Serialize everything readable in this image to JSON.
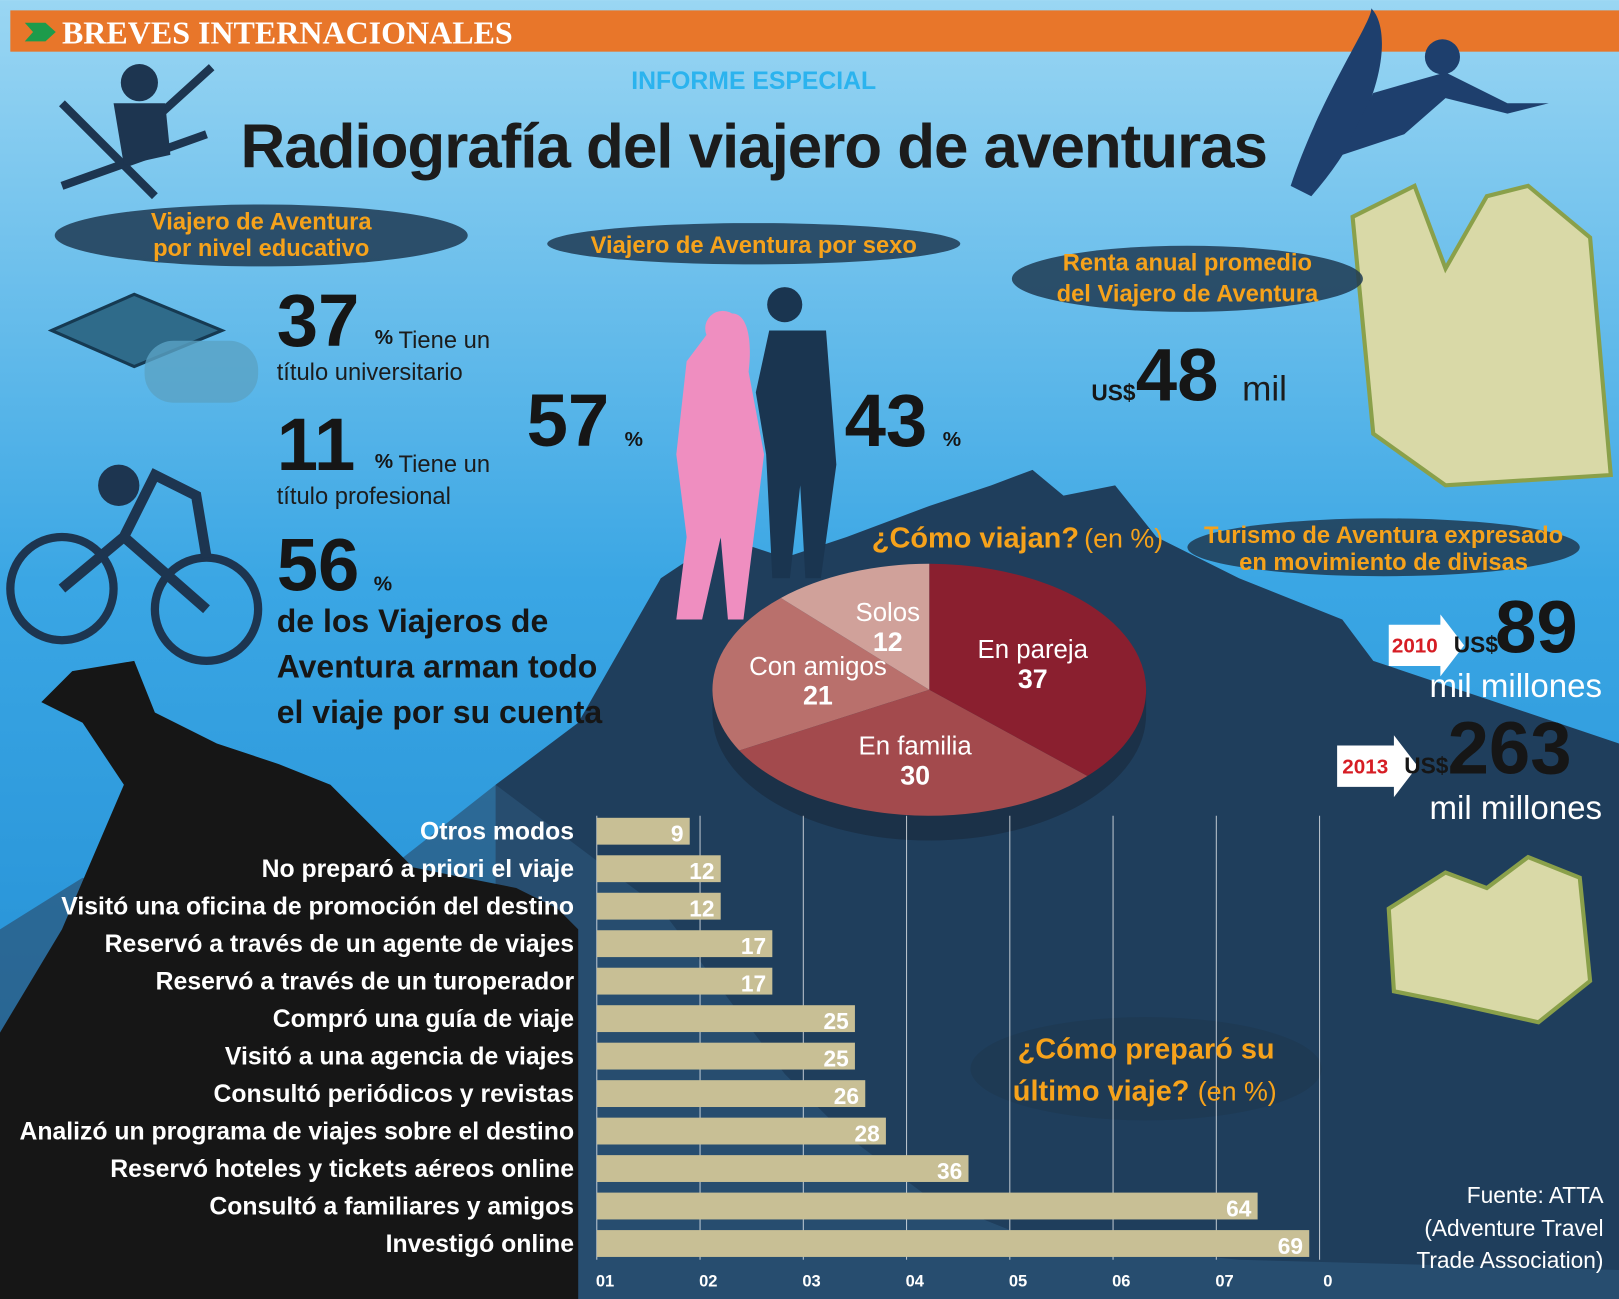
{
  "header": {
    "section": "BREVES INTERNACIONALES",
    "kicker": "INFORME ESPECIAL",
    "title": "Radiografía del viajero de aventuras"
  },
  "education": {
    "heading": [
      "Viajero de Aventura",
      "por nivel educativo"
    ],
    "items": [
      {
        "value": 37,
        "unit": "%",
        "text": [
          "Tiene un",
          "título universitario"
        ]
      },
      {
        "value": 11,
        "unit": "%",
        "text": [
          "Tiene un",
          "título profesional"
        ]
      },
      {
        "value": 56,
        "unit": "%",
        "text": [
          "de los Viajeros de",
          "Aventura arman todo",
          "el viaje por su cuenta"
        ]
      }
    ]
  },
  "sex": {
    "heading": "Viajero de Aventura por sexo",
    "women": {
      "value": 57,
      "unit": "%"
    },
    "men": {
      "value": 43,
      "unit": "%"
    }
  },
  "income": {
    "heading": [
      "Renta anual promedio",
      "del Viajero de Aventura"
    ],
    "currency": "US$",
    "value": 48,
    "unit": "mil"
  },
  "currency": {
    "heading": [
      "Turismo de Aventura expresado",
      "en movimiento de divisas"
    ],
    "items": [
      {
        "year": "2010",
        "currency": "US$",
        "value": 89,
        "unit": "mil millones"
      },
      {
        "year": "2013",
        "currency": "US$",
        "value": 263,
        "unit": "mil millones"
      }
    ]
  },
  "chart_data": [
    {
      "type": "pie",
      "title": "¿Cómo viajan?",
      "title_unit": "(en %)",
      "categories": [
        "En pareja",
        "En familia",
        "Con amigos",
        "Solos"
      ],
      "values": [
        37,
        30,
        21,
        12
      ],
      "colors": [
        "#8a1f2f",
        "#a34a4d",
        "#b9706c",
        "#d0a19a"
      ]
    },
    {
      "type": "bar",
      "orientation": "horizontal",
      "title": [
        "¿Cómo preparó su",
        "último viaje?"
      ],
      "title_unit": "(en %)",
      "categories": [
        "Otros modos",
        "No preparó a priori el viaje",
        "Visitó una oficina de promoción del destino",
        "Reservó a través de un agente de viajes",
        "Reservó a través de un turoperador",
        "Compró una guía de viaje",
        "Visitó a una agencia de viajes",
        "Consultó periódicos y revistas",
        "Analizó un programa de viajes sobre el destino",
        "Reservó hoteles y tickets aéreos online",
        "Consultó a familiares y amigos",
        "Investigó online"
      ],
      "values": [
        9,
        12,
        12,
        17,
        17,
        25,
        25,
        26,
        28,
        36,
        64,
        69
      ],
      "color": "#c8bf95",
      "xlim": [
        0,
        70
      ],
      "xticks": [
        {
          "value": 0,
          "label": "01"
        },
        {
          "value": 10,
          "label": "02"
        },
        {
          "value": 20,
          "label": "03"
        },
        {
          "value": 30,
          "label": "04"
        },
        {
          "value": 40,
          "label": "05"
        },
        {
          "value": 50,
          "label": "06"
        },
        {
          "value": 60,
          "label": "07"
        },
        {
          "value": 70,
          "label": "0"
        }
      ],
      "grid": true
    }
  ],
  "source": [
    "Fuente: ATTA",
    "(Adventure Travel",
    "Trade Association)"
  ]
}
